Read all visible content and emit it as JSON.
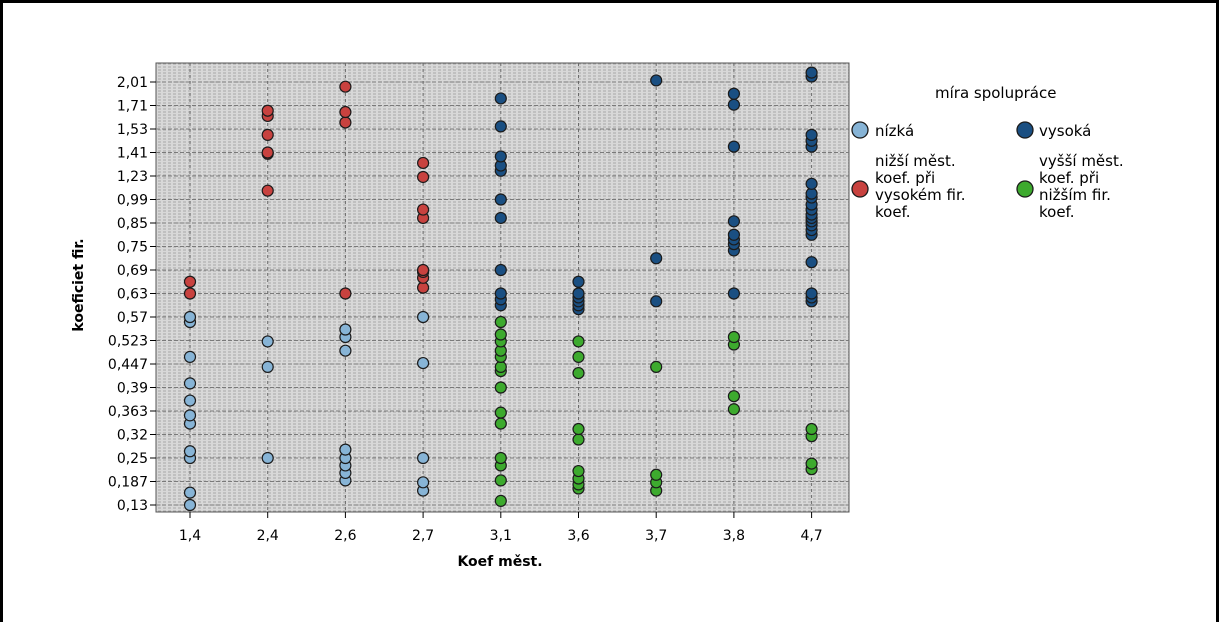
{
  "chart_data": {
    "type": "scatter",
    "title": "",
    "xlabel": "Koef měst.",
    "ylabel": "koeficiet fir.",
    "x_categories": [
      "1,4",
      "2,4",
      "2,6",
      "2,7",
      "3,1",
      "3,6",
      "3,7",
      "3,8",
      "4,7"
    ],
    "y_categories": [
      "0,13",
      "0,187",
      "0,25",
      "0,32",
      "0,363",
      "0,39",
      "0,447",
      "0,523",
      "0,57",
      "0,63",
      "0,69",
      "0,75",
      "0,85",
      "0,99",
      "1,23",
      "1,41",
      "1,53",
      "1,71",
      "2,01"
    ],
    "grid": true,
    "legend": {
      "title": "míra spolupráce",
      "placement": "right",
      "entries": [
        {
          "label": "nízká",
          "color": "#87B4D6"
        },
        {
          "label": "vysoká",
          "color": "#1A4F82"
        },
        {
          "label": "nižší měst. koef. při vysokém fir. koef.",
          "color": "#C8423F"
        },
        {
          "label": "vyšší měst. koef. při nižším fir. koef.",
          "color": "#3DAA2E"
        }
      ]
    },
    "series": [
      {
        "name": "nízká",
        "color": "#87B4D6",
        "points": [
          [
            "1,4",
            0.13
          ],
          [
            "1,4",
            0.16
          ],
          [
            "1,4",
            0.25
          ],
          [
            "1,4",
            0.27
          ],
          [
            "1,4",
            0.34
          ],
          [
            "1,4",
            0.355
          ],
          [
            "1,4",
            0.375
          ],
          [
            "1,4",
            0.4
          ],
          [
            "1,4",
            0.47
          ],
          [
            "1,4",
            0.56
          ],
          [
            "1,4",
            0.57
          ],
          [
            "2,4",
            0.25
          ],
          [
            "2,4",
            0.44
          ],
          [
            "2,4",
            0.52
          ],
          [
            "2,6",
            0.19
          ],
          [
            "2,6",
            0.21
          ],
          [
            "2,6",
            0.23
          ],
          [
            "2,6",
            0.25
          ],
          [
            "2,6",
            0.275
          ],
          [
            "2,6",
            0.49
          ],
          [
            "2,6",
            0.53
          ],
          [
            "2,6",
            0.545
          ],
          [
            "2,7",
            0.165
          ],
          [
            "2,7",
            0.185
          ],
          [
            "2,7",
            0.25
          ],
          [
            "2,7",
            0.45
          ],
          [
            "2,7",
            0.57
          ]
        ]
      },
      {
        "name": "vysoká",
        "color": "#1A4F82",
        "points": [
          [
            "3,1",
            0.6
          ],
          [
            "3,1",
            0.615
          ],
          [
            "3,1",
            0.63
          ],
          [
            "3,1",
            0.69
          ],
          [
            "3,1",
            0.88
          ],
          [
            "3,1",
            0.99
          ],
          [
            "3,1",
            1.27
          ],
          [
            "3,1",
            1.31
          ],
          [
            "3,1",
            1.38
          ],
          [
            "3,1",
            1.55
          ],
          [
            "3,1",
            1.8
          ],
          [
            "3,6",
            0.59
          ],
          [
            "3,6",
            0.6
          ],
          [
            "3,6",
            0.61
          ],
          [
            "3,6",
            0.62
          ],
          [
            "3,6",
            0.63
          ],
          [
            "3,6",
            0.66
          ],
          [
            "3,7",
            0.61
          ],
          [
            "3,7",
            0.72
          ],
          [
            "3,7",
            2.03
          ],
          [
            "3,8",
            0.63
          ],
          [
            "3,8",
            0.74
          ],
          [
            "3,8",
            0.76
          ],
          [
            "3,8",
            0.78
          ],
          [
            "3,8",
            0.8
          ],
          [
            "3,8",
            0.86
          ],
          [
            "3,8",
            1.44
          ],
          [
            "3,8",
            1.72
          ],
          [
            "3,8",
            1.86
          ],
          [
            "4,7",
            0.61
          ],
          [
            "4,7",
            0.62
          ],
          [
            "4,7",
            0.63
          ],
          [
            "4,7",
            0.71
          ],
          [
            "4,7",
            0.8
          ],
          [
            "4,7",
            0.82
          ],
          [
            "4,7",
            0.84
          ],
          [
            "4,7",
            0.86
          ],
          [
            "4,7",
            0.88
          ],
          [
            "4,7",
            0.9
          ],
          [
            "4,7",
            0.93
          ],
          [
            "4,7",
            0.96
          ],
          [
            "4,7",
            1.01
          ],
          [
            "4,7",
            1.05
          ],
          [
            "4,7",
            1.15
          ],
          [
            "4,7",
            1.44
          ],
          [
            "4,7",
            1.47
          ],
          [
            "4,7",
            1.5
          ],
          [
            "4,7",
            2.08
          ],
          [
            "4,7",
            2.13
          ]
        ]
      },
      {
        "name": "nižší měst. koef. při vysokém fir. koef.",
        "color": "#C8423F",
        "points": [
          [
            "1,4",
            0.63
          ],
          [
            "1,4",
            0.66
          ],
          [
            "2,4",
            1.08
          ],
          [
            "2,4",
            1.4
          ],
          [
            "2,4",
            1.41
          ],
          [
            "2,4",
            1.5
          ],
          [
            "2,4",
            1.63
          ],
          [
            "2,4",
            1.67
          ],
          [
            "2,6",
            0.63
          ],
          [
            "2,6",
            1.58
          ],
          [
            "2,6",
            1.66
          ],
          [
            "2,6",
            1.95
          ],
          [
            "2,7",
            0.645
          ],
          [
            "2,7",
            0.67
          ],
          [
            "2,7",
            0.685
          ],
          [
            "2,7",
            0.69
          ],
          [
            "2,7",
            0.88
          ],
          [
            "2,7",
            0.93
          ],
          [
            "2,7",
            1.22
          ],
          [
            "2,7",
            1.33
          ]
        ]
      },
      {
        "name": "vyšší měst. koef. při nižším fir. koef.",
        "color": "#3DAA2E",
        "points": [
          [
            "3,1",
            0.14
          ],
          [
            "3,1",
            0.19
          ],
          [
            "3,1",
            0.23
          ],
          [
            "3,1",
            0.25
          ],
          [
            "3,1",
            0.34
          ],
          [
            "3,1",
            0.36
          ],
          [
            "3,1",
            0.39
          ],
          [
            "3,1",
            0.43
          ],
          [
            "3,1",
            0.44
          ],
          [
            "3,1",
            0.47
          ],
          [
            "3,1",
            0.49
          ],
          [
            "3,1",
            0.52
          ],
          [
            "3,1",
            0.535
          ],
          [
            "3,1",
            0.56
          ],
          [
            "3,6",
            0.17
          ],
          [
            "3,6",
            0.18
          ],
          [
            "3,6",
            0.195
          ],
          [
            "3,6",
            0.215
          ],
          [
            "3,6",
            0.305
          ],
          [
            "3,6",
            0.33
          ],
          [
            "3,6",
            0.425
          ],
          [
            "3,6",
            0.47
          ],
          [
            "3,6",
            0.52
          ],
          [
            "3,7",
            0.165
          ],
          [
            "3,7",
            0.185
          ],
          [
            "3,7",
            0.205
          ],
          [
            "3,7",
            0.44
          ],
          [
            "3,8",
            0.365
          ],
          [
            "3,8",
            0.38
          ],
          [
            "3,8",
            0.51
          ],
          [
            "3,8",
            0.53
          ],
          [
            "4,7",
            0.22
          ],
          [
            "4,7",
            0.235
          ],
          [
            "4,7",
            0.315
          ],
          [
            "4,7",
            0.33
          ]
        ]
      }
    ]
  }
}
